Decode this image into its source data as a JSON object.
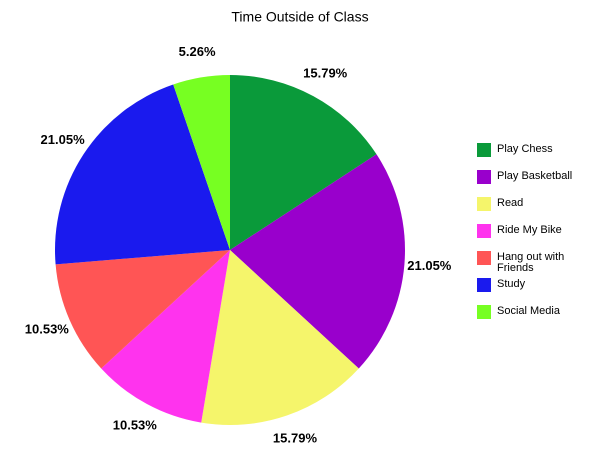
{
  "chart_data": {
    "type": "pie",
    "title": "Time Outside of Class",
    "categories": [
      "Play Chess",
      "Play Basketball",
      "Read",
      "Ride My Bike",
      "Hang out with Friends",
      "Study",
      "Social Media"
    ],
    "values": [
      15.79,
      21.05,
      15.79,
      10.53,
      10.53,
      21.05,
      5.26
    ],
    "value_labels": [
      "15.79%",
      "21.05%",
      "15.79%",
      "10.53%",
      "10.53%",
      "21.05%",
      "5.26%"
    ],
    "colors": [
      "#0a9a3a",
      "#9900cc",
      "#f5f56b",
      "#ff33ee",
      "#ff5555",
      "#1a1aee",
      "#77ff22"
    ],
    "legend": "right"
  }
}
